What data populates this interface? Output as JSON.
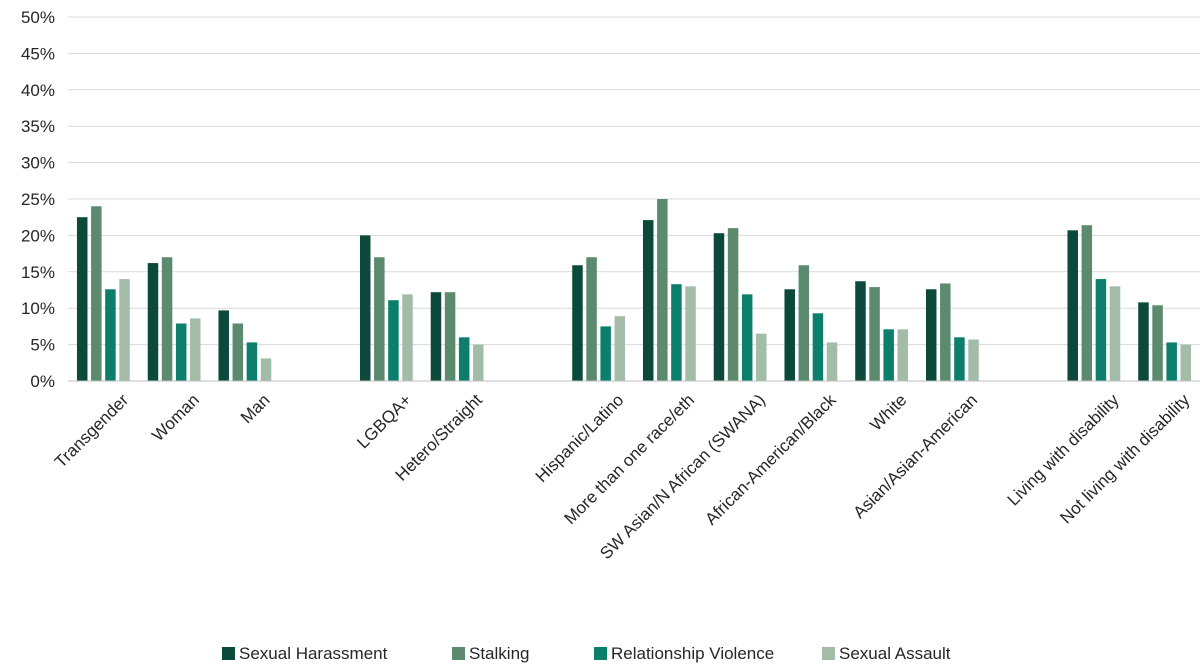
{
  "chart_data": {
    "type": "bar",
    "title": "",
    "xlabel": "",
    "ylabel": "",
    "ylim": [
      0,
      50
    ],
    "y_ticks": [
      "0%",
      "5%",
      "10%",
      "15%",
      "20%",
      "25%",
      "30%",
      "35%",
      "40%",
      "45%",
      "50%"
    ],
    "grid": true,
    "legend_position": "bottom",
    "categories": [
      "Transgender",
      "Woman",
      "Man",
      "LGBQA+",
      "Hetero/Straight",
      "Hispanic/Latino",
      "More than one race/eth",
      "SW Asian/N African (SWANA)",
      "African-American/Black",
      "White",
      "Asian/Asian-American",
      "Living with disability",
      "Not living with disability"
    ],
    "groups": [
      [
        0,
        1,
        2
      ],
      [
        3,
        4
      ],
      [
        5,
        6,
        7,
        8,
        9,
        10
      ],
      [
        11,
        12
      ]
    ],
    "series": [
      {
        "name": "Sexual Harassment",
        "color": "#0b4a3a",
        "values": [
          22.5,
          16.2,
          9.7,
          20.0,
          12.2,
          15.9,
          22.1,
          20.3,
          12.6,
          13.7,
          12.6,
          20.7,
          10.8
        ]
      },
      {
        "name": "Stalking",
        "color": "#5b8a6e",
        "values": [
          24.0,
          17.0,
          7.9,
          17.0,
          12.2,
          17.0,
          25.0,
          21.0,
          15.9,
          12.9,
          13.4,
          21.4,
          10.4
        ]
      },
      {
        "name": "Relationship Violence",
        "color": "#0b7f6b",
        "values": [
          12.6,
          7.9,
          5.3,
          11.1,
          6.0,
          7.5,
          13.3,
          11.9,
          9.3,
          7.1,
          6.0,
          14.0,
          5.3
        ]
      },
      {
        "name": "Sexual Assault",
        "color": "#a3bca8",
        "values": [
          14.0,
          8.6,
          3.1,
          11.9,
          5.0,
          8.9,
          13.0,
          6.5,
          5.3,
          7.1,
          5.7,
          13.0,
          5.0
        ]
      }
    ]
  }
}
